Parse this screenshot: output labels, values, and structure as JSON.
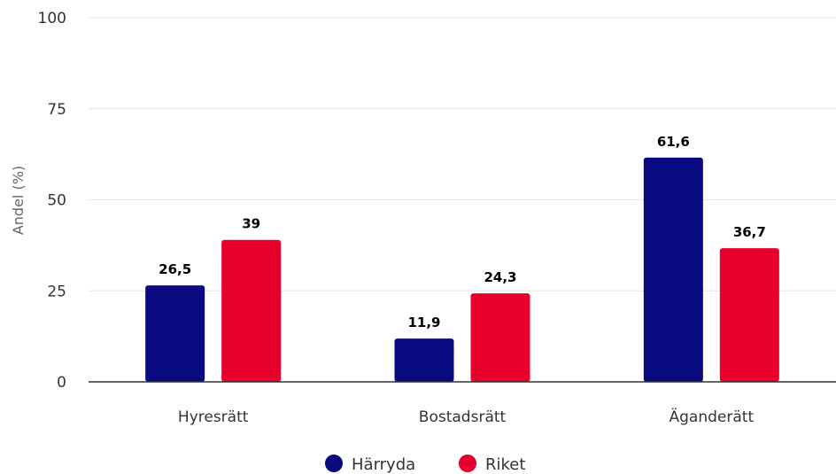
{
  "chart_data": {
    "type": "bar",
    "categories": [
      "Hyresrätt",
      "Bostadsrätt",
      "Äganderätt"
    ],
    "series": [
      {
        "name": "Härryda",
        "values": [
          26.5,
          11.9,
          61.6
        ],
        "labels": [
          "26,5",
          "11,9",
          "61,6"
        ],
        "color": "#0a0a80"
      },
      {
        "name": "Riket",
        "values": [
          39,
          24.3,
          36.7
        ],
        "labels": [
          "39",
          "24,3",
          "36,7"
        ],
        "color": "#e8002d"
      }
    ],
    "ylabel": "Andel (%)",
    "ylim": [
      0,
      100
    ],
    "yticks": [
      "0",
      "25",
      "50",
      "75",
      "100"
    ],
    "grid": true,
    "legend": "bottom-center"
  }
}
